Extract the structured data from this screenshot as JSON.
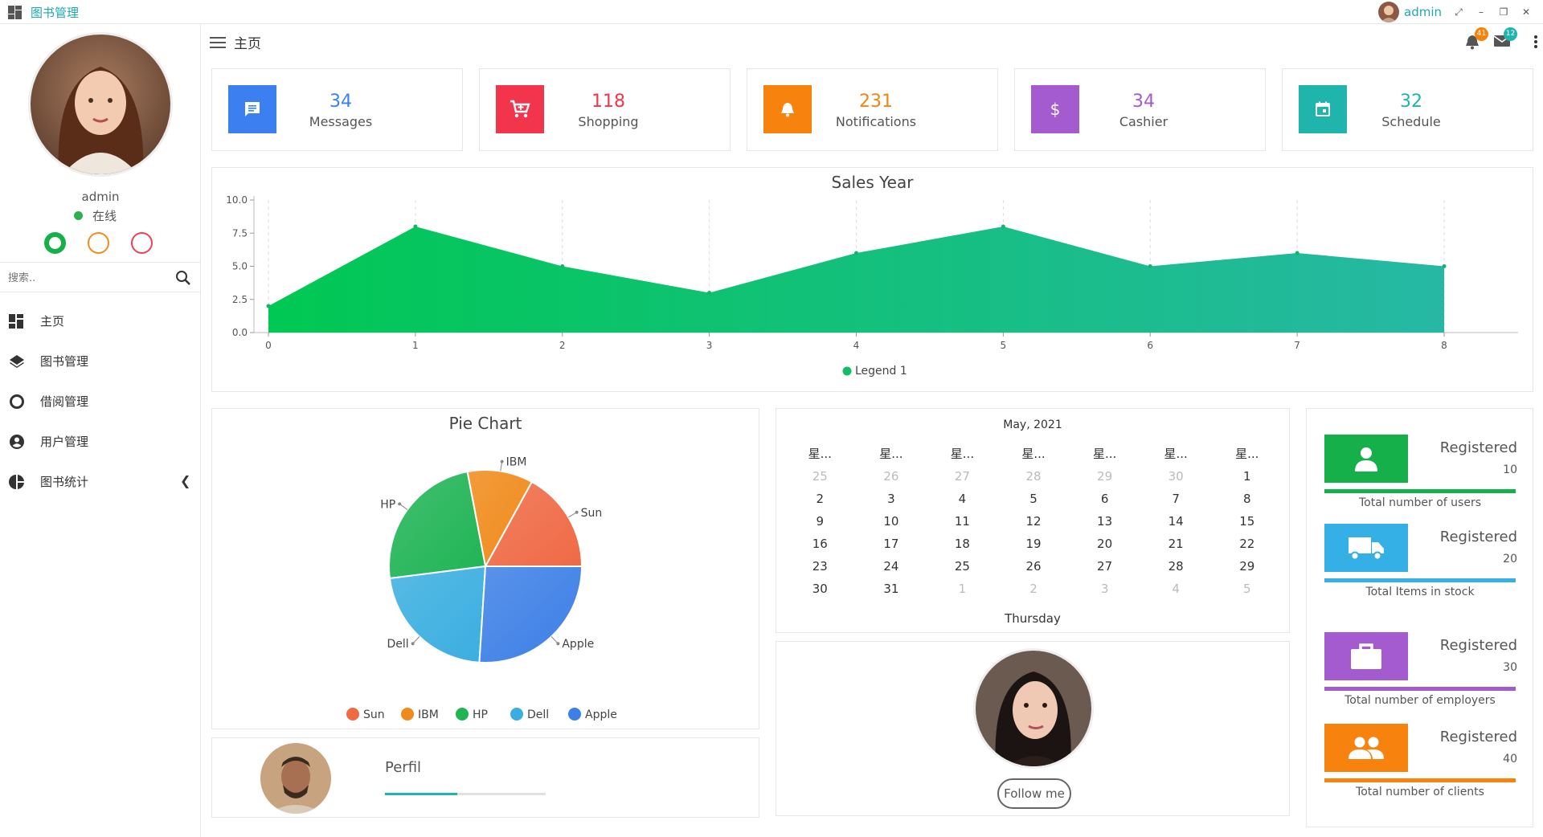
{
  "window": {
    "title": "图书管理",
    "user": "admin"
  },
  "sidebar": {
    "user_name": "admin",
    "status": "在线",
    "search_placeholder": "搜索..",
    "items": [
      {
        "label": "主页",
        "icon": "dashboard-icon"
      },
      {
        "label": "图书管理",
        "icon": "layers-icon"
      },
      {
        "label": "借阅管理",
        "icon": "circle-icon"
      },
      {
        "label": "用户管理",
        "icon": "account-icon"
      },
      {
        "label": "图书统计",
        "icon": "pie-icon"
      }
    ]
  },
  "header": {
    "title": "主页",
    "notifications_badge": "41",
    "messages_badge": "12"
  },
  "stats": [
    {
      "value": "34",
      "label": "Messages",
      "color": "#3b7ff0",
      "icon": "message-icon"
    },
    {
      "value": "118",
      "label": "Shopping",
      "color": "#f2354c",
      "icon": "cart-icon"
    },
    {
      "value": "231",
      "label": "Notifications",
      "color": "#f7830e",
      "icon": "bell-icon"
    },
    {
      "value": "34",
      "label": "Cashier",
      "color": "#a45bd0",
      "icon": "dollar-icon"
    },
    {
      "value": "32",
      "label": "Schedule",
      "color": "#1fb5ad",
      "icon": "calendar-icon"
    }
  ],
  "chart_data": [
    {
      "type": "area",
      "title": "Sales Year",
      "x": [
        0,
        1,
        2,
        3,
        4,
        5,
        6,
        7,
        8
      ],
      "series": [
        {
          "name": "Legend 1",
          "values": [
            2,
            8,
            5,
            3,
            6,
            8,
            5,
            6,
            5
          ]
        }
      ],
      "ylim": [
        0,
        10
      ],
      "yticks": [
        "0.0",
        "2.5",
        "5.0",
        "7.5",
        "10.0"
      ],
      "xticks": [
        "0",
        "1",
        "2",
        "3",
        "4",
        "5",
        "6",
        "7",
        "8"
      ],
      "grid": "vertical dashed",
      "legend": "bottom-center"
    },
    {
      "type": "pie",
      "title": "Pie Chart",
      "categories": [
        "Sun",
        "IBM",
        "HP",
        "Dell",
        "Apple"
      ],
      "values": [
        17,
        11,
        24,
        22,
        26
      ],
      "colors": [
        "#ef6a45",
        "#f08a1a",
        "#20b455",
        "#3aaee0",
        "#3c7fe6"
      ],
      "legend": "bottom-center"
    }
  ],
  "calendar": {
    "title": "May, 2021",
    "weekdays": [
      "星...",
      "星...",
      "星...",
      "星...",
      "星...",
      "星...",
      "星..."
    ],
    "weeks": [
      [
        {
          "d": "25",
          "m": true
        },
        {
          "d": "26",
          "m": true
        },
        {
          "d": "27",
          "m": true
        },
        {
          "d": "28",
          "m": true
        },
        {
          "d": "29",
          "m": true
        },
        {
          "d": "30",
          "m": true
        },
        {
          "d": "1",
          "m": false
        }
      ],
      [
        {
          "d": "2",
          "m": false
        },
        {
          "d": "3",
          "m": false
        },
        {
          "d": "4",
          "m": false
        },
        {
          "d": "5",
          "m": false
        },
        {
          "d": "6",
          "m": false
        },
        {
          "d": "7",
          "m": false
        },
        {
          "d": "8",
          "m": false
        }
      ],
      [
        {
          "d": "9",
          "m": false
        },
        {
          "d": "10",
          "m": false
        },
        {
          "d": "11",
          "m": false
        },
        {
          "d": "12",
          "m": false
        },
        {
          "d": "13",
          "m": false
        },
        {
          "d": "14",
          "m": false
        },
        {
          "d": "15",
          "m": false
        }
      ],
      [
        {
          "d": "16",
          "m": false
        },
        {
          "d": "17",
          "m": false
        },
        {
          "d": "18",
          "m": false
        },
        {
          "d": "19",
          "m": false
        },
        {
          "d": "20",
          "m": false
        },
        {
          "d": "21",
          "m": false
        },
        {
          "d": "22",
          "m": false
        }
      ],
      [
        {
          "d": "23",
          "m": false
        },
        {
          "d": "24",
          "m": false
        },
        {
          "d": "25",
          "m": false
        },
        {
          "d": "26",
          "m": false
        },
        {
          "d": "27",
          "m": false
        },
        {
          "d": "28",
          "m": false
        },
        {
          "d": "29",
          "m": false
        }
      ],
      [
        {
          "d": "30",
          "m": false
        },
        {
          "d": "31",
          "m": false
        },
        {
          "d": "1",
          "m": true
        },
        {
          "d": "2",
          "m": true
        },
        {
          "d": "3",
          "m": true
        },
        {
          "d": "4",
          "m": true
        },
        {
          "d": "5",
          "m": true
        }
      ]
    ],
    "selected_day": "Thursday"
  },
  "perfil": {
    "label": "Perfil",
    "progress": 0.45
  },
  "profile_card": {
    "follow_label": "Follow me"
  },
  "summary": [
    {
      "heading": "Registered",
      "count": "10",
      "label": "Total number of users",
      "color": "#15b04a",
      "icon": "person-icon"
    },
    {
      "heading": "Registered",
      "count": "20",
      "label": "Total Items in stock",
      "color": "#35b0e6",
      "icon": "truck-icon"
    },
    {
      "heading": "Registered",
      "count": "30",
      "label": "Total number of employers",
      "color": "#a45bd0",
      "icon": "briefcase-icon"
    },
    {
      "heading": "Registered",
      "count": "40",
      "label": "Total number of clients",
      "color": "#f7830e",
      "icon": "group-icon"
    }
  ]
}
